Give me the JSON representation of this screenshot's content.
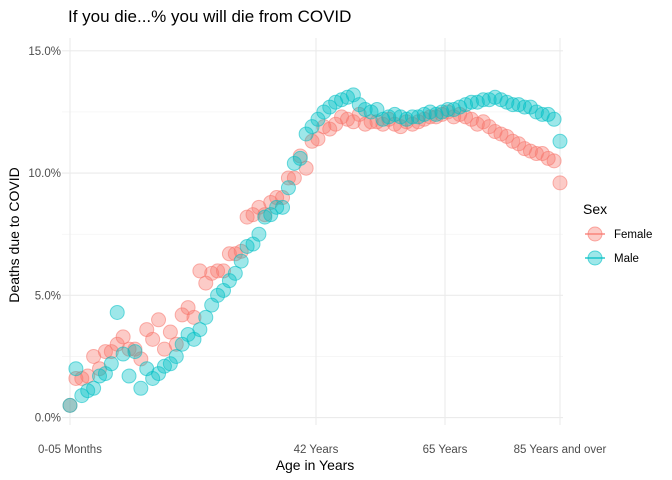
{
  "chart_data": {
    "type": "scatter",
    "title": "If you die...% you will die from COVID",
    "xlabel": "Age in Years",
    "ylabel": "Deaths due to COVID",
    "x_tick_labels": [
      "0-05 Months",
      "42 Years",
      "65 Years",
      "85 Years and over"
    ],
    "y_tick_labels": [
      "0.0%",
      "5.0%",
      "10.0%",
      "15.0%"
    ],
    "y_ticks": [
      0,
      5,
      10,
      15
    ],
    "ylim": [
      -0.5,
      15.8
    ],
    "grid": true,
    "legend": {
      "title": "Sex",
      "position": "right"
    },
    "series": [
      {
        "name": "Female",
        "color": "#F8766D",
        "values": [
          0.5,
          1.6,
          1.6,
          1.7,
          2.5,
          2.0,
          2.7,
          2.7,
          3.0,
          3.3,
          2.8,
          2.8,
          2.4,
          3.6,
          3.2,
          4.0,
          2.8,
          3.5,
          3.0,
          4.2,
          4.5,
          4.1,
          6.0,
          5.5,
          5.9,
          6.0,
          6.0,
          6.7,
          6.7,
          6.8,
          8.2,
          8.3,
          8.6,
          8.3,
          8.8,
          9.0,
          9.0,
          9.8,
          9.8,
          10.7,
          10.2,
          11.3,
          11.4,
          11.9,
          11.8,
          12.0,
          12.3,
          12.2,
          12.1,
          12.4,
          12.0,
          12.1,
          12.1,
          12.0,
          12.2,
          12.0,
          11.9,
          12.1,
          12.0,
          12.1,
          12.2,
          12.3,
          12.3,
          12.4,
          12.5,
          12.3,
          12.4,
          12.3,
          12.2,
          12.0,
          12.1,
          11.9,
          11.7,
          11.6,
          11.5,
          11.3,
          11.2,
          11.0,
          10.9,
          10.8,
          10.8,
          10.6,
          10.5,
          9.6
        ]
      },
      {
        "name": "Male",
        "color": "#00BFC4",
        "values": [
          0.5,
          2.0,
          0.9,
          1.1,
          1.2,
          1.7,
          1.8,
          2.2,
          4.3,
          2.6,
          1.7,
          2.7,
          1.2,
          2.0,
          1.6,
          1.8,
          2.1,
          2.2,
          2.5,
          3.0,
          3.4,
          3.2,
          3.6,
          4.1,
          4.6,
          5.0,
          5.2,
          5.6,
          5.9,
          6.4,
          7.0,
          7.1,
          7.5,
          8.2,
          8.3,
          8.6,
          8.6,
          9.4,
          10.4,
          10.6,
          11.6,
          11.9,
          12.2,
          12.5,
          12.7,
          12.9,
          13.0,
          13.1,
          13.2,
          12.8,
          12.6,
          12.5,
          12.6,
          12.2,
          12.3,
          12.4,
          12.3,
          12.2,
          12.3,
          12.3,
          12.4,
          12.5,
          12.4,
          12.5,
          12.6,
          12.6,
          12.7,
          12.8,
          12.9,
          12.9,
          13.0,
          13.0,
          13.1,
          13.0,
          12.9,
          12.8,
          12.8,
          12.7,
          12.7,
          12.5,
          12.4,
          12.4,
          12.2,
          11.3
        ]
      }
    ]
  }
}
